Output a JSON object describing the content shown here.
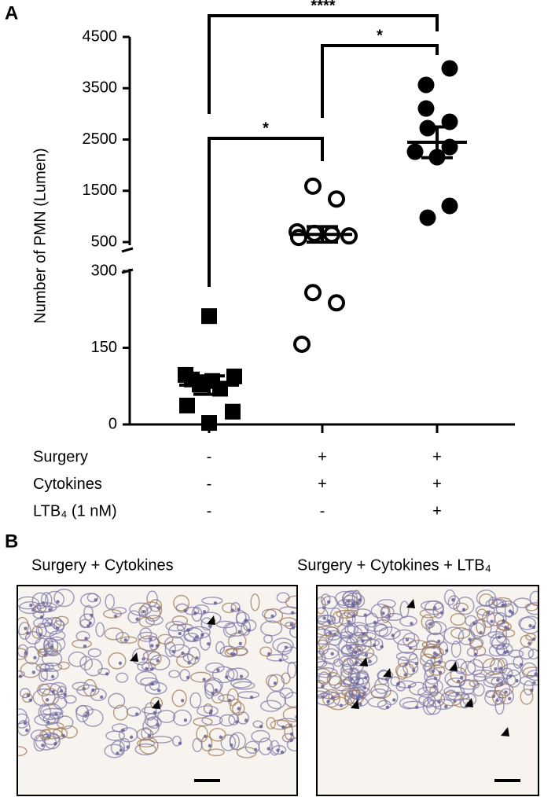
{
  "chart_data": {
    "type": "scatter",
    "panel_label": "A",
    "y_label": "Number of PMN (Lumen)",
    "ylim": [
      0,
      4500
    ],
    "y_break": [
      300,
      500
    ],
    "yticks": [
      0,
      150,
      300,
      500,
      1500,
      2500,
      3500,
      4500
    ],
    "color": "#000000",
    "groups": [
      {
        "marker": "square",
        "values": [
          212,
          97,
          94,
          88,
          85,
          78,
          70,
          37,
          25,
          3
        ],
        "mean": 77,
        "sem": 18
      },
      {
        "marker": "open-circle",
        "values": [
          1590,
          1340,
          700,
          670,
          650,
          620,
          590,
          258,
          238,
          157
        ],
        "mean": 650,
        "sem": 150
      },
      {
        "marker": "filled-circle",
        "values": [
          3887,
          3565,
          3105,
          2845,
          2722,
          2354,
          2262,
          2155,
          1205,
          975
        ],
        "mean": 2446,
        "sem": 300
      }
    ],
    "conditions": [
      {
        "name": "Surgery",
        "levels": [
          "-",
          "+",
          "+"
        ]
      },
      {
        "name": "Cytokines",
        "levels": [
          "-",
          "+",
          "+"
        ]
      },
      {
        "name": "LTB₄ (1 nM)",
        "levels": [
          "-",
          "-",
          "+"
        ]
      }
    ],
    "comparisons": [
      {
        "from": 0,
        "to": 2,
        "label": "****"
      },
      {
        "from": 1,
        "to": 2,
        "label": "*"
      },
      {
        "from": 0,
        "to": 1,
        "label": "*"
      }
    ]
  },
  "panel_b": {
    "label": "B",
    "images": [
      {
        "title": "Surgery + Cytokines"
      },
      {
        "title": "Surgery + Cytokines + LTB₄"
      }
    ]
  }
}
